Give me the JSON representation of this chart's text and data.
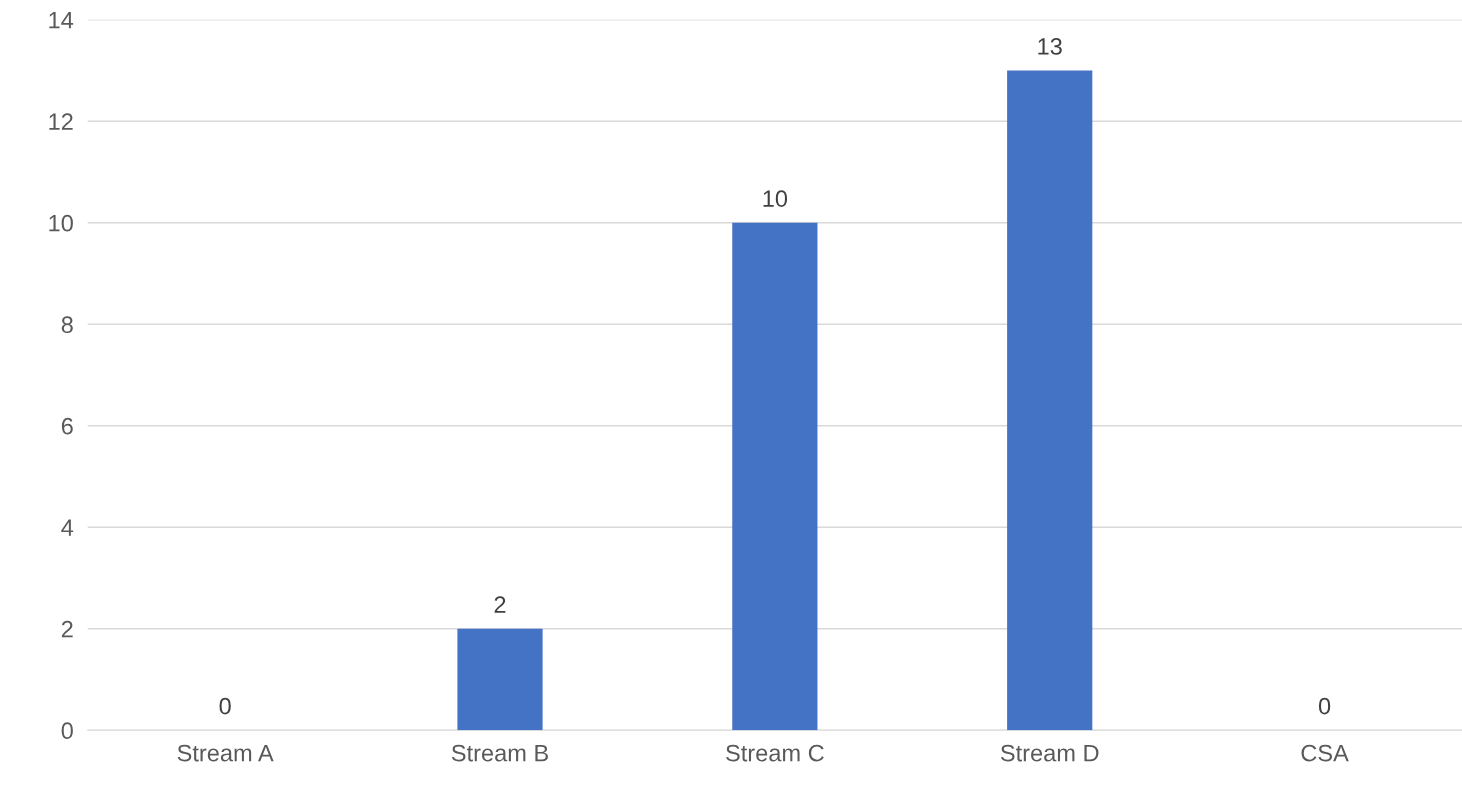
{
  "chart_data": {
    "type": "bar",
    "categories": [
      "Stream A",
      "Stream B",
      "Stream C",
      "Stream D",
      "CSA"
    ],
    "values": [
      0,
      2,
      10,
      13,
      0
    ],
    "color": "#4472c4",
    "ylim": [
      0,
      14
    ],
    "yticks": [
      0,
      2,
      4,
      6,
      8,
      10,
      12,
      14
    ],
    "grid": "y",
    "data_labels": true
  }
}
